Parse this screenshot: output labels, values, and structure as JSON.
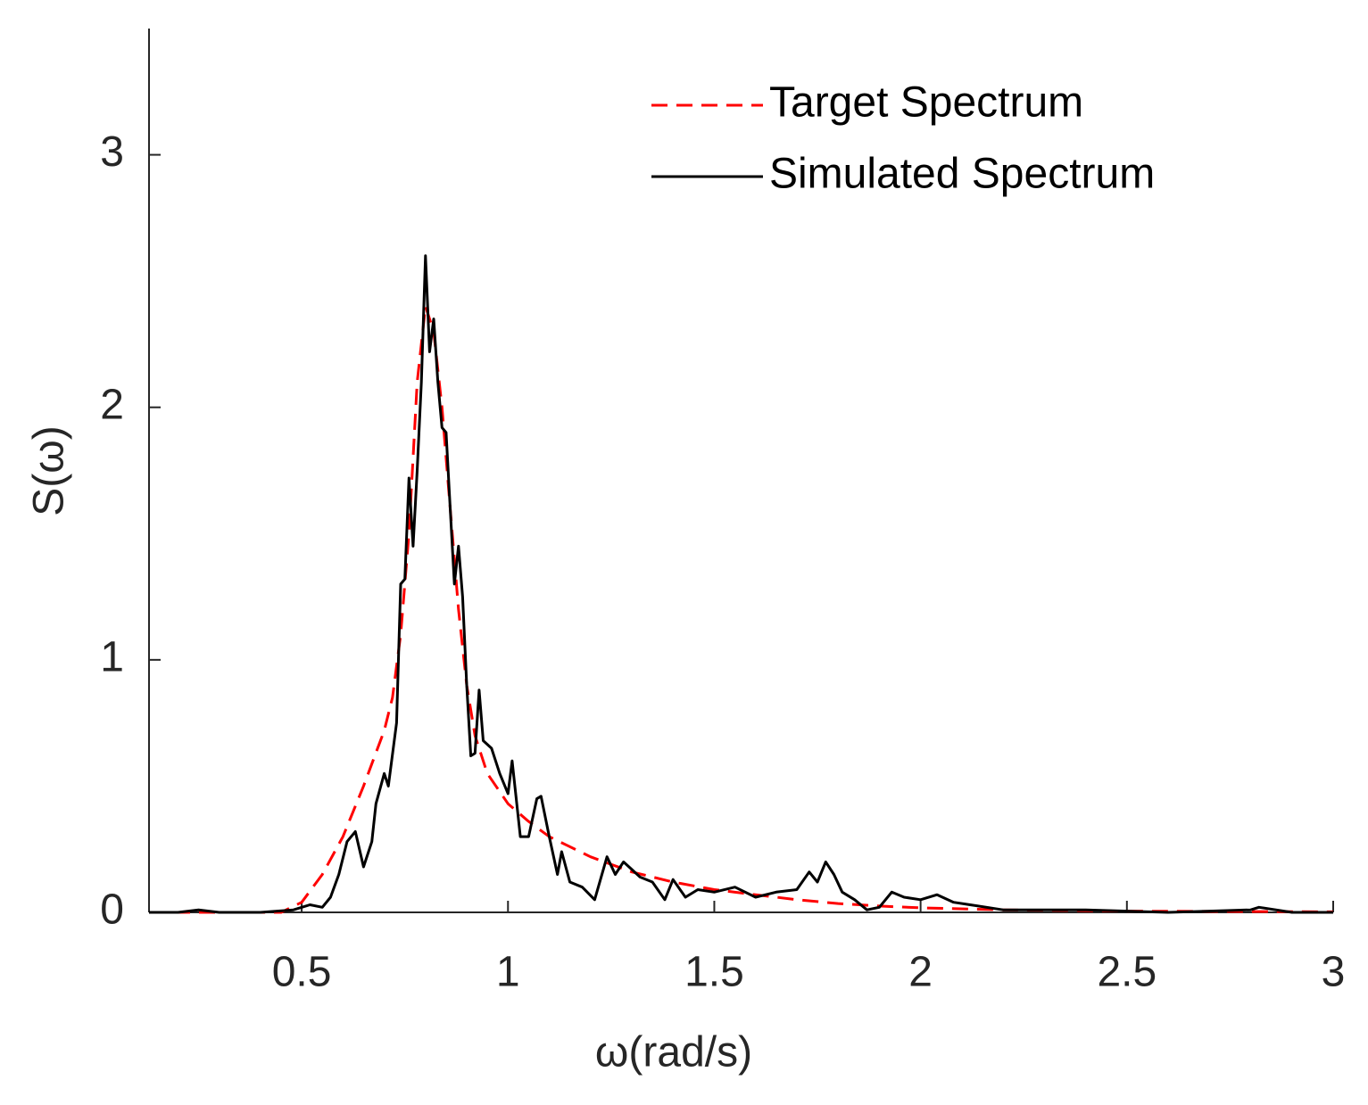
{
  "chart_data": {
    "type": "line",
    "x_label": "ω(rad/s)",
    "y_label": "S(ω)",
    "xlim": [
      0.13,
      3
    ],
    "ylim": [
      0,
      3.5
    ],
    "xticks": [
      0.5,
      1,
      1.5,
      2,
      2.5,
      3
    ],
    "yticks": [
      0,
      1,
      2,
      3
    ],
    "legend": "upper right",
    "series": [
      {
        "name": "Target Spectrum",
        "color": "#ff0000",
        "style": "dashed",
        "x": [
          0.13,
          0.3,
          0.45,
          0.5,
          0.55,
          0.6,
          0.65,
          0.7,
          0.72,
          0.74,
          0.76,
          0.78,
          0.8,
          0.82,
          0.84,
          0.86,
          0.88,
          0.9,
          0.92,
          0.95,
          1.0,
          1.05,
          1.1,
          1.2,
          1.3,
          1.4,
          1.5,
          1.6,
          1.7,
          1.8,
          1.9,
          2.0,
          2.2,
          2.5,
          3.0
        ],
        "values": [
          0,
          0,
          0,
          0.04,
          0.15,
          0.3,
          0.5,
          0.72,
          0.85,
          1.1,
          1.5,
          2.1,
          2.4,
          2.3,
          2.0,
          1.6,
          1.2,
          0.9,
          0.7,
          0.55,
          0.43,
          0.36,
          0.3,
          0.22,
          0.16,
          0.12,
          0.09,
          0.07,
          0.05,
          0.035,
          0.025,
          0.018,
          0.01,
          0.005,
          0.002
        ]
      },
      {
        "name": "Simulated Spectrum",
        "color": "#000000",
        "style": "solid",
        "x": [
          0.13,
          0.2,
          0.25,
          0.3,
          0.4,
          0.48,
          0.52,
          0.55,
          0.57,
          0.59,
          0.61,
          0.63,
          0.65,
          0.67,
          0.68,
          0.7,
          0.71,
          0.73,
          0.74,
          0.75,
          0.76,
          0.77,
          0.78,
          0.79,
          0.8,
          0.81,
          0.82,
          0.83,
          0.84,
          0.85,
          0.86,
          0.87,
          0.88,
          0.89,
          0.9,
          0.91,
          0.92,
          0.93,
          0.94,
          0.96,
          0.98,
          1.0,
          1.01,
          1.03,
          1.05,
          1.07,
          1.08,
          1.1,
          1.12,
          1.13,
          1.15,
          1.18,
          1.21,
          1.24,
          1.26,
          1.28,
          1.3,
          1.32,
          1.35,
          1.38,
          1.4,
          1.43,
          1.46,
          1.5,
          1.55,
          1.6,
          1.65,
          1.7,
          1.73,
          1.75,
          1.77,
          1.79,
          1.81,
          1.84,
          1.87,
          1.9,
          1.93,
          1.96,
          2.0,
          2.04,
          2.08,
          2.12,
          2.2,
          2.3,
          2.4,
          2.5,
          2.6,
          2.7,
          2.8,
          2.82,
          2.9,
          3.0
        ],
        "values": [
          0,
          0,
          0.01,
          0,
          0,
          0.01,
          0.03,
          0.02,
          0.06,
          0.15,
          0.28,
          0.32,
          0.18,
          0.28,
          0.43,
          0.55,
          0.5,
          0.75,
          1.3,
          1.32,
          1.72,
          1.45,
          1.75,
          2.1,
          2.6,
          2.22,
          2.35,
          2.1,
          1.92,
          1.9,
          1.6,
          1.3,
          1.45,
          1.25,
          0.9,
          0.62,
          0.63,
          0.88,
          0.68,
          0.65,
          0.55,
          0.47,
          0.6,
          0.3,
          0.3,
          0.45,
          0.46,
          0.3,
          0.15,
          0.24,
          0.12,
          0.1,
          0.05,
          0.22,
          0.15,
          0.2,
          0.17,
          0.14,
          0.12,
          0.05,
          0.13,
          0.06,
          0.09,
          0.08,
          0.1,
          0.06,
          0.08,
          0.09,
          0.16,
          0.12,
          0.2,
          0.15,
          0.08,
          0.05,
          0.01,
          0.02,
          0.08,
          0.06,
          0.05,
          0.07,
          0.04,
          0.03,
          0.01,
          0.01,
          0.01,
          0.005,
          0,
          0.005,
          0.01,
          0.02,
          0,
          0
        ]
      }
    ]
  }
}
